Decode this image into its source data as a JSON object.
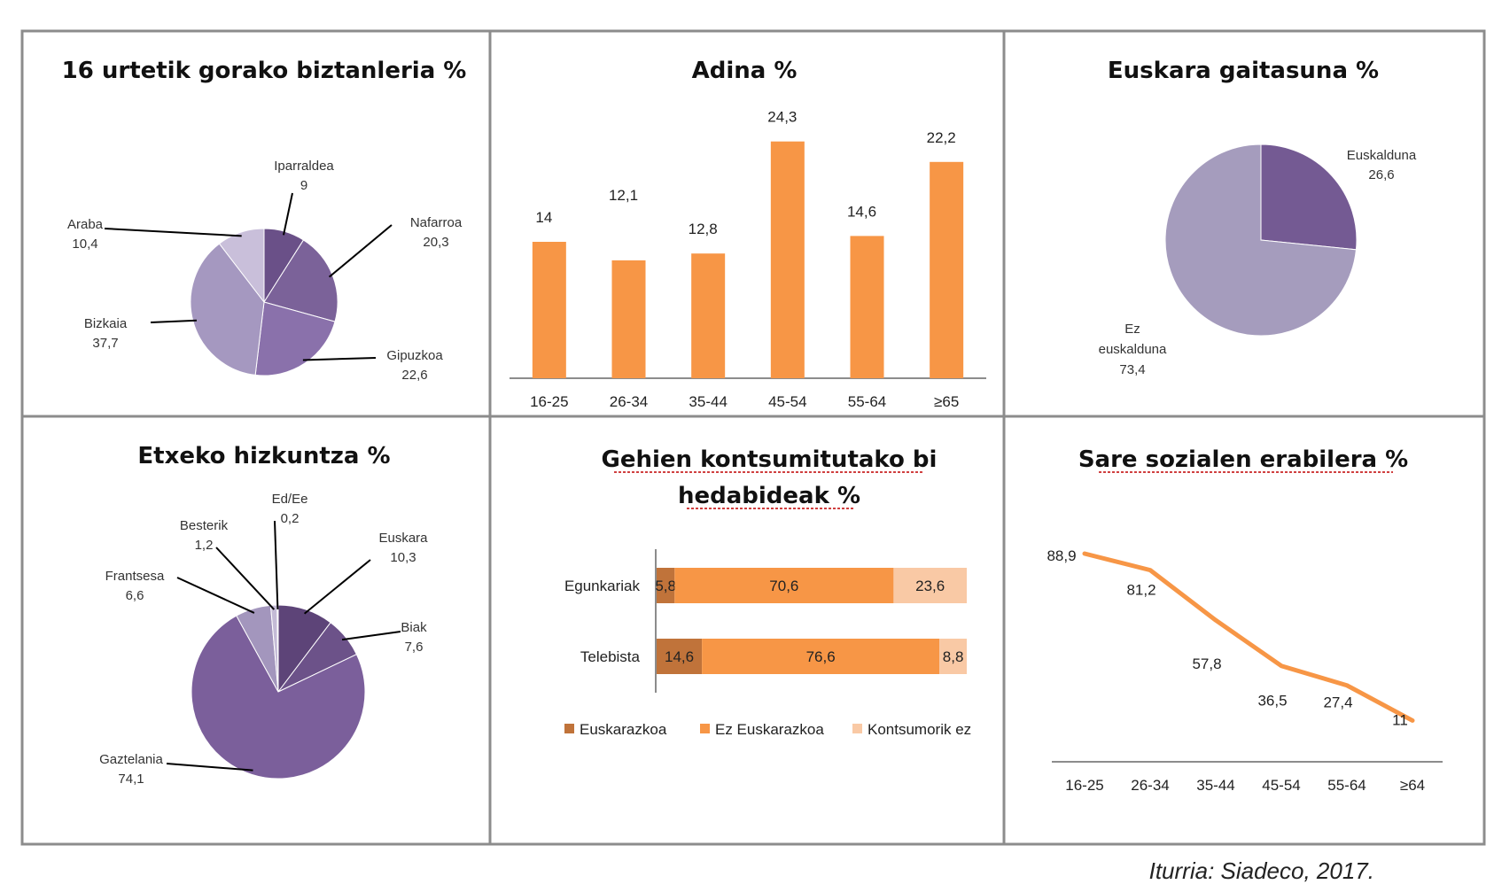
{
  "source": "Iturria: Siadeco, 2017.",
  "chart_data": [
    {
      "type": "pie",
      "title": "16 urtetik gorako biztanleria %",
      "slices": [
        {
          "name": "Iparraldea",
          "value": 9,
          "label": "9",
          "color": "#6a5088"
        },
        {
          "name": "Nafarroa",
          "value": 20.3,
          "label": "20,3",
          "color": "#7b6299"
        },
        {
          "name": "Gipuzkoa",
          "value": 22.6,
          "label": "22,6",
          "color": "#8a71ab"
        },
        {
          "name": "Bizkaia",
          "value": 37.7,
          "label": "37,7",
          "color": "#a598c0"
        },
        {
          "name": "Araba",
          "value": 10.4,
          "label": "10,4",
          "color": "#c9bfda"
        }
      ]
    },
    {
      "type": "bar",
      "title": "Adina %",
      "categories": [
        "16-25",
        "26-34",
        "35-44",
        "45-54",
        "55-64",
        "≥65"
      ],
      "values": [
        14,
        12.1,
        12.8,
        24.3,
        14.6,
        22.2
      ],
      "value_labels": [
        "14",
        "12,1",
        "12,8",
        "24,3",
        "14,6",
        "22,2"
      ],
      "color": "#f79646",
      "ylim": [
        0,
        27
      ]
    },
    {
      "type": "pie",
      "title": "Euskara gaitasuna %",
      "slices": [
        {
          "name": "Euskaldunа",
          "value": 26.6,
          "label": "26,6",
          "color": "#745a93"
        },
        {
          "name": "Ez euskalduna",
          "value": 73.4,
          "label": "73,4",
          "color": "#a59cbd"
        }
      ]
    },
    {
      "type": "pie",
      "title": "Etxeko hizkuntza %",
      "slices": [
        {
          "name": "Euskara",
          "value": 10.3,
          "label": "10,3",
          "color": "#5d4478"
        },
        {
          "name": "Biak",
          "value": 7.6,
          "label": "7,6",
          "color": "#6c5289"
        },
        {
          "name": "Gaztelania",
          "value": 74.1,
          "label": "74,1",
          "color": "#7b5f9b"
        },
        {
          "name": "Frantsesa",
          "value": 6.6,
          "label": "6,6",
          "color": "#a396bd"
        },
        {
          "name": "Besterik",
          "value": 1.2,
          "label": "1,2",
          "color": "#c4bbd6"
        },
        {
          "name": "Ed/Ee",
          "value": 0.2,
          "label": "0,2",
          "color": "#ddd6e8"
        }
      ]
    },
    {
      "type": "bar",
      "orientation": "horizontal",
      "stacked": true,
      "title": "Gehien kontsumitutako bi hedabideak %",
      "title_lines": [
        "Gehien kontsumitutako bi",
        "hedabideak %"
      ],
      "categories": [
        "Egunkariak",
        "Telebista"
      ],
      "series": [
        {
          "name": "Euskarazkoa",
          "values": [
            5.8,
            14.6
          ],
          "labels": [
            "5,8",
            "14,6"
          ],
          "color": "#c0733a"
        },
        {
          "name": "Ez Euskarazkoa",
          "values": [
            70.6,
            76.6
          ],
          "labels": [
            "70,6",
            "76,6"
          ],
          "color": "#f79646"
        },
        {
          "name": "Kontsumorik ez",
          "values": [
            23.6,
            8.8
          ],
          "labels": [
            "23,6",
            "8,8"
          ],
          "color": "#f9c9a5"
        }
      ],
      "legend": "bottom"
    },
    {
      "type": "line",
      "title": "Sare sozialen erabilera %",
      "categories": [
        "16-25",
        "26-34",
        "35-44",
        "45-54",
        "55-64",
        "≥64"
      ],
      "values": [
        88.9,
        81.2,
        57.8,
        36.5,
        27.4,
        11
      ],
      "value_labels": [
        "88,9",
        "81,2",
        "57,8",
        "36,5",
        "27,4",
        "11"
      ],
      "color": "#f79646",
      "ylim": [
        0,
        95
      ]
    }
  ]
}
